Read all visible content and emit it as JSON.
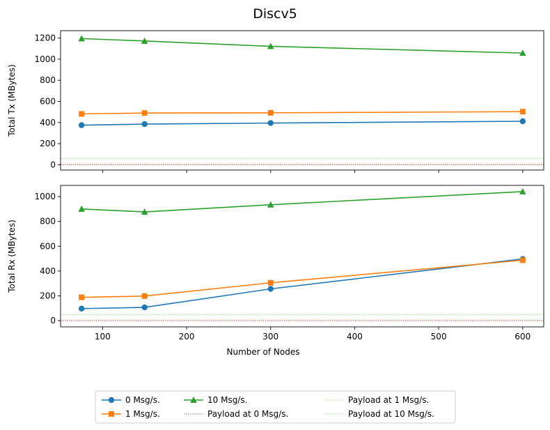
{
  "chart_data": {
    "type": "line",
    "title": "Discv5",
    "xlabel": "Number of Nodes",
    "x": [
      75,
      150,
      300,
      600
    ],
    "xlim": [
      50,
      625
    ],
    "xticks": [
      100,
      200,
      300,
      400,
      500,
      600
    ],
    "legend_position": "bottom-center",
    "panels": [
      {
        "key": "tx",
        "ylabel": "Total Tx (MBytes)",
        "ylim": [
          -50,
          1270
        ],
        "yticks": [
          0,
          200,
          400,
          600,
          800,
          1000,
          1200
        ],
        "series": [
          {
            "name": "0 Msg/s.",
            "values": [
              375,
              385,
              395,
              412
            ]
          },
          {
            "name": "1 Msg/s.",
            "values": [
              482,
              490,
              492,
              503
            ]
          },
          {
            "name": "10 Msg/s.",
            "values": [
              1195,
              1172,
              1122,
              1058
            ]
          }
        ],
        "payload_lines": [
          {
            "name": "Payload at 0 Msg/s.",
            "value": 0
          },
          {
            "name": "Payload at 1 Msg/s.",
            "value": 6
          },
          {
            "name": "Payload at 10 Msg/s.",
            "value": 60
          }
        ]
      },
      {
        "key": "rx",
        "ylabel": "Total Rx (MBytes)",
        "ylim": [
          -50,
          1090
        ],
        "yticks": [
          0,
          200,
          400,
          600,
          800,
          1000
        ],
        "series": [
          {
            "name": "0 Msg/s.",
            "values": [
              97,
              107,
              256,
              497
            ]
          },
          {
            "name": "1 Msg/s.",
            "values": [
              188,
              198,
              305,
              487
            ]
          },
          {
            "name": "10 Msg/s.",
            "values": [
              900,
              876,
              934,
              1040
            ]
          }
        ],
        "payload_lines": [
          {
            "name": "Payload at 0 Msg/s.",
            "value": 0
          },
          {
            "name": "Payload at 1 Msg/s.",
            "value": 5
          },
          {
            "name": "Payload at 10 Msg/s.",
            "value": 50
          }
        ]
      }
    ],
    "legend": [
      {
        "name": "0 Msg/s.",
        "kind": "series",
        "color": "#1f77b4",
        "marker": "circle"
      },
      {
        "name": "1 Msg/s.",
        "kind": "series",
        "color": "#ff7f0e",
        "marker": "square"
      },
      {
        "name": "10 Msg/s.",
        "kind": "series",
        "color": "#2ca02c",
        "marker": "triangle"
      },
      {
        "name": "Payload at 0 Msg/s.",
        "kind": "payload",
        "color": "#9467bd"
      },
      {
        "name": "Payload at 1 Msg/s.",
        "kind": "payload",
        "color": "#ffbb78"
      },
      {
        "name": "Payload at 10 Msg/s.",
        "kind": "payload",
        "color": "#98df8a"
      }
    ],
    "colors": {
      "series": [
        "#1f77b4",
        "#ff7f0e",
        "#2ca02c"
      ],
      "payload": [
        "#9467bd",
        "#ffbb78",
        "#98df8a"
      ]
    },
    "markers": [
      "circle",
      "square",
      "triangle"
    ]
  }
}
